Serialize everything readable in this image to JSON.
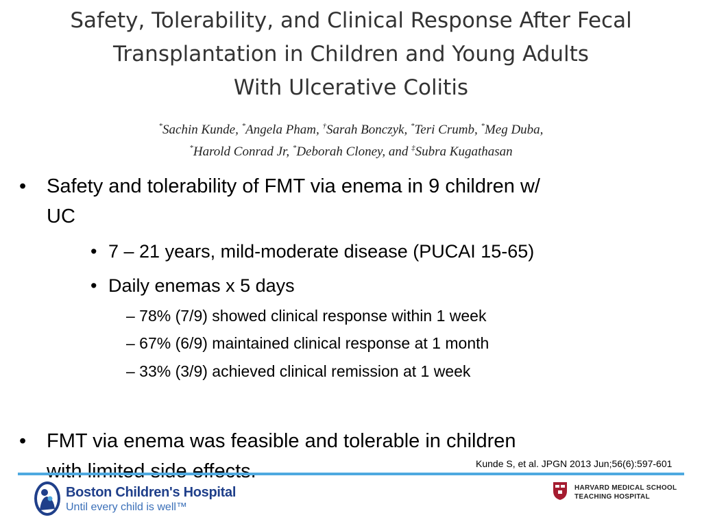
{
  "title": {
    "line1": "Safety, Tolerability, and Clinical Response After Fecal",
    "line2": "Transplantation in Children and Young Adults",
    "line3": "With Ulcerative Colitis"
  },
  "authors": {
    "line1": [
      {
        "mark": "*",
        "name": "Sachin Kunde, "
      },
      {
        "mark": "*",
        "name": "Angela Pham, "
      },
      {
        "mark": "†",
        "name": "Sarah Bonczyk, "
      },
      {
        "mark": "*",
        "name": "Teri Crumb, "
      },
      {
        "mark": "*",
        "name": "Meg Duba,"
      }
    ],
    "line2": [
      {
        "mark": "*",
        "name": "Harold Conrad Jr, "
      },
      {
        "mark": "*",
        "name": "Deborah Cloney, and "
      },
      {
        "mark": "‡",
        "name": "Subra Kugathasan"
      }
    ]
  },
  "bullets": {
    "b1_line1": "Safety and tolerability of FMT via enema in 9 children w/",
    "b1_line2": "UC",
    "sub1": "7 – 21 years, mild-moderate disease (PUCAI 15-65)",
    "sub2": "Daily enemas x 5 days",
    "subsub1": "– 78% (7/9) showed clinical response within 1 week",
    "subsub2": "– 67% (6/9) maintained clinical response at 1 month",
    "subsub3": "– 33% (3/9) achieved clinical remission at 1 week",
    "b2_line1": "FMT via enema was feasible and tolerable in children",
    "b2_line2": "with limited side effects.",
    "dot": "•"
  },
  "citation": "Kunde S, et al. JPGN 2013 Jun;56(6):597-601",
  "footer": {
    "bch_name": "Boston Children's Hospital",
    "bch_tagline": "Until every child is well™",
    "hms_line1": "HARVARD MEDICAL SCHOOL",
    "hms_line2": "TEACHING HOSPITAL"
  },
  "colors": {
    "rule": "#4ea9e0",
    "bch_blue": "#1f3f8a",
    "hms_crimson": "#a51c30"
  }
}
